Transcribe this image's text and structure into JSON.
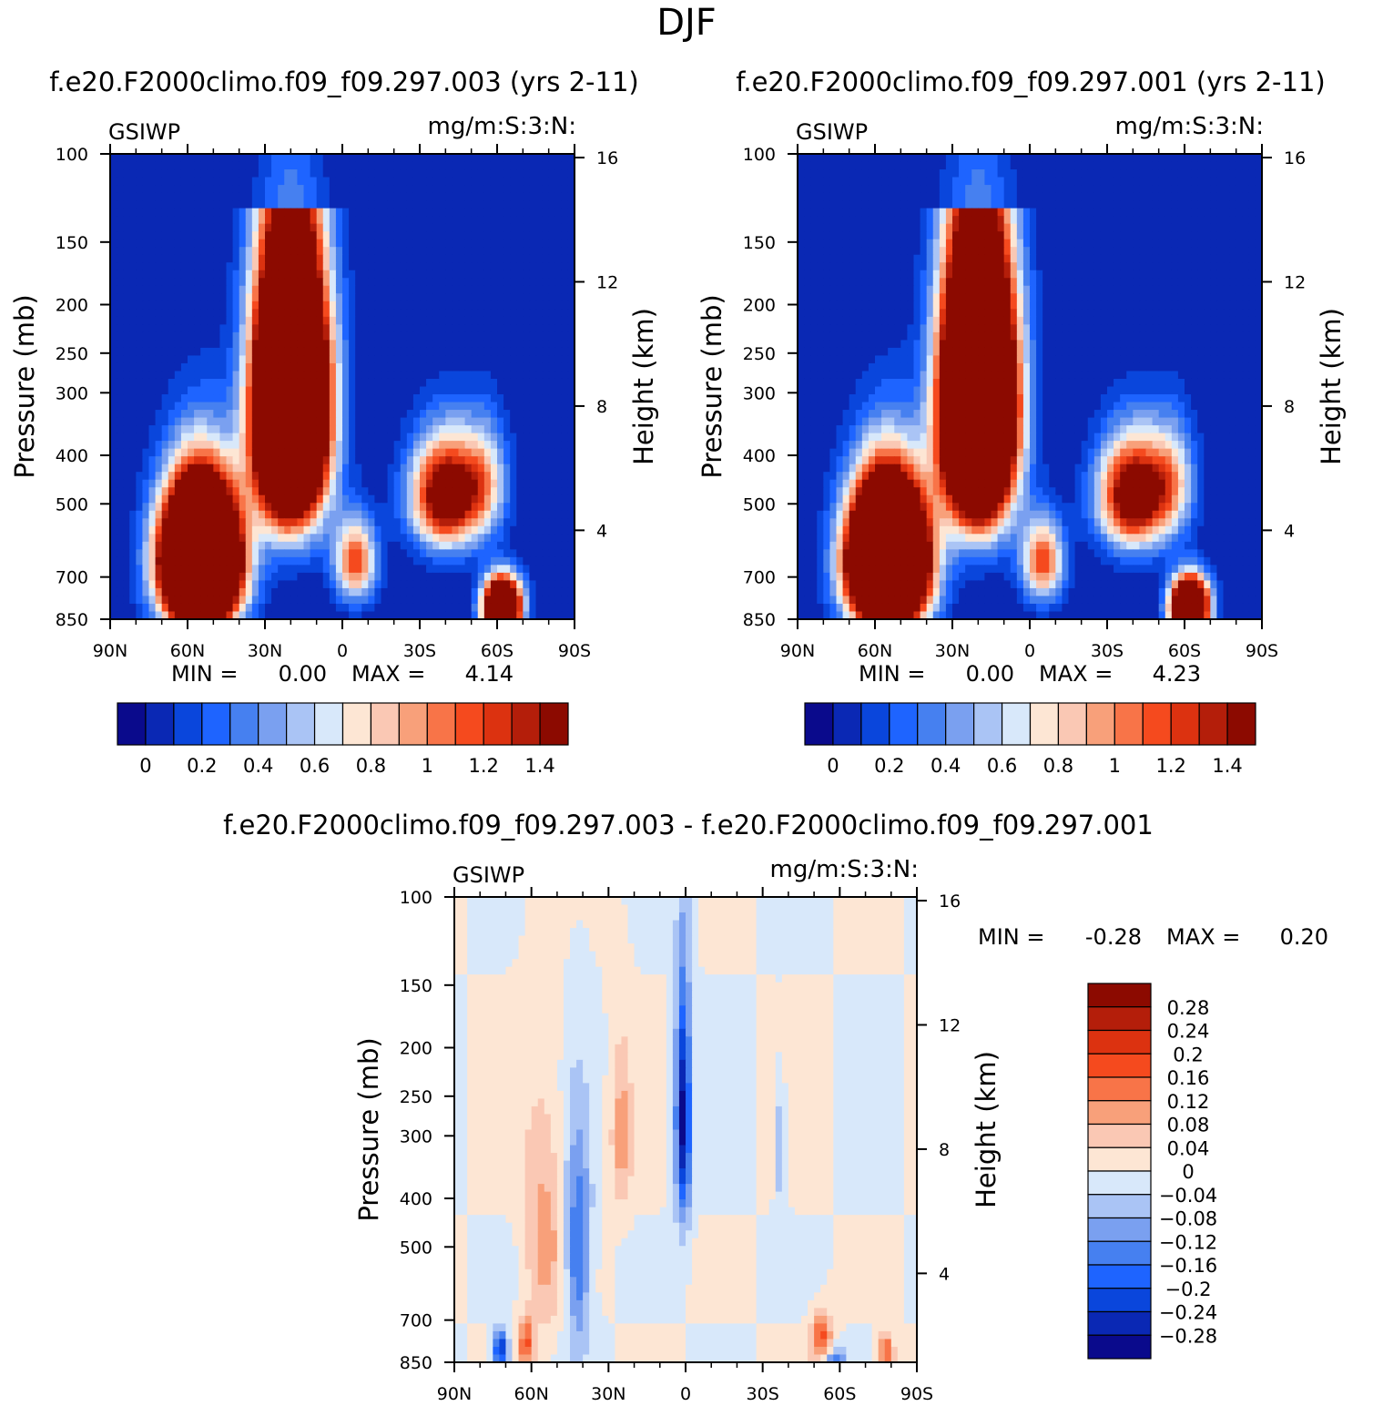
{
  "page_title": "DJF",
  "palettes": {
    "absolute": [
      "#0a0a8c",
      "#0a28b4",
      "#0a46dc",
      "#1e64ff",
      "#4680f0",
      "#7aa0f0",
      "#aac4f5",
      "#d8e8fa",
      "#fde6d4",
      "#fac8b4",
      "#f8a07a",
      "#f87448",
      "#f54a1e",
      "#dc3210",
      "#b41e0a",
      "#8c0a00"
    ],
    "difference": [
      "#0a0a8c",
      "#0a28b4",
      "#0a46dc",
      "#1e64ff",
      "#4680f0",
      "#7aa0f0",
      "#aac4f5",
      "#d8e8fa",
      "#fde6d4",
      "#fac8b4",
      "#f8a07a",
      "#f87448",
      "#f54a1e",
      "#dc3210",
      "#b41e0a",
      "#8c0a00"
    ]
  },
  "chart_data": [
    {
      "type": "heatmap",
      "title": "f.e20.F2000climo.f09_f09.297.003 (yrs 2-11)",
      "left_label": "GSIWP",
      "right_label": "mg/m:S:3:N:",
      "ylabel": "Pressure (mb)",
      "y2label": "Height (km)",
      "x_ticks": [
        "90N",
        "60N",
        "30N",
        "0",
        "30S",
        "60S",
        "90S"
      ],
      "y_ticks": [
        100,
        150,
        200,
        250,
        300,
        400,
        500,
        700,
        850
      ],
      "y2_ticks": [
        16,
        12,
        8,
        4
      ],
      "ylim": [
        100,
        850
      ],
      "min_label": "MIN =",
      "min_value": "0.00",
      "max_label": "MAX =",
      "max_value": "4.14",
      "colorbar_labels": [
        "0",
        "0.2",
        "0.4",
        "0.6",
        "0.8",
        "1",
        "1.2",
        "1.4"
      ],
      "features": [
        {
          "lat": -20,
          "p": 320,
          "amp": 5.2,
          "slat": 13,
          "sp": 190
        },
        {
          "lat": -55,
          "p": 650,
          "amp": 5.4,
          "slat": 14,
          "sp": 200
        },
        {
          "lat": 5,
          "p": 650,
          "amp": 1.2,
          "slat": 8,
          "sp": 120
        },
        {
          "lat": 40,
          "p": 480,
          "amp": 1.8,
          "slat": 13,
          "sp": 120
        },
        {
          "lat": 55,
          "p": 450,
          "amp": 0.7,
          "slat": 9,
          "sp": 120
        },
        {
          "lat": 62,
          "p": 800,
          "amp": 3.2,
          "slat": 7,
          "sp": 100
        }
      ]
    },
    {
      "type": "heatmap",
      "title": "f.e20.F2000climo.f09_f09.297.001 (yrs 2-11)",
      "left_label": "GSIWP",
      "right_label": "mg/m:S:3:N:",
      "ylabel": "Pressure (mb)",
      "y2label": "Height (km)",
      "x_ticks": [
        "90N",
        "60N",
        "30N",
        "0",
        "30S",
        "60S",
        "90S"
      ],
      "y_ticks": [
        100,
        150,
        200,
        250,
        300,
        400,
        500,
        700,
        850
      ],
      "y2_ticks": [
        16,
        12,
        8,
        4
      ],
      "ylim": [
        100,
        850
      ],
      "min_label": "MIN =",
      "min_value": "0.00",
      "max_label": "MAX =",
      "max_value": "4.23",
      "colorbar_labels": [
        "0",
        "0.2",
        "0.4",
        "0.6",
        "0.8",
        "1",
        "1.2",
        "1.4"
      ],
      "features": [
        {
          "lat": -20,
          "p": 320,
          "amp": 5.3,
          "slat": 13,
          "sp": 190
        },
        {
          "lat": -55,
          "p": 650,
          "amp": 5.5,
          "slat": 14,
          "sp": 200
        },
        {
          "lat": 5,
          "p": 650,
          "amp": 1.2,
          "slat": 8,
          "sp": 120
        },
        {
          "lat": 40,
          "p": 480,
          "amp": 1.8,
          "slat": 13,
          "sp": 120
        },
        {
          "lat": 55,
          "p": 450,
          "amp": 0.7,
          "slat": 9,
          "sp": 120
        },
        {
          "lat": 62,
          "p": 800,
          "amp": 3.3,
          "slat": 7,
          "sp": 100
        }
      ]
    },
    {
      "type": "heatmap",
      "title": "f.e20.F2000climo.f09_f09.297.003 - f.e20.F2000climo.f09_f09.297.001",
      "left_label": "GSIWP",
      "right_label": "mg/m:S:3:N:",
      "ylabel": "Pressure (mb)",
      "y2label": "Height (km)",
      "x_ticks": [
        "90N",
        "60N",
        "30N",
        "0",
        "30S",
        "60S",
        "90S"
      ],
      "y_ticks": [
        100,
        150,
        200,
        250,
        300,
        400,
        500,
        700,
        850
      ],
      "y2_ticks": [
        16,
        12,
        8,
        4
      ],
      "ylim": [
        100,
        850
      ],
      "min_label": "MIN =",
      "min_value": "-0.28",
      "max_label": "MAX =",
      "max_value": "0.20",
      "colorbar_labels": [
        "0.28",
        "0.24",
        "0.2",
        "0.16",
        "0.12",
        "0.08",
        "0.04",
        "0",
        "-0.04",
        "-0.08",
        "-0.12",
        "-0.16",
        "-0.2",
        "-0.24",
        "-0.28"
      ],
      "features": [
        {
          "lat": -1,
          "p": 280,
          "amp": -0.3,
          "slat": 3,
          "sp": 150
        },
        {
          "lat": -55,
          "p": 480,
          "amp": 0.1,
          "slat": 8,
          "sp": 240
        },
        {
          "lat": -62,
          "p": 780,
          "amp": 0.16,
          "slat": 3,
          "sp": 90
        },
        {
          "lat": -72,
          "p": 800,
          "amp": -0.26,
          "slat": 3,
          "sp": 70
        },
        {
          "lat": -42,
          "p": 520,
          "amp": -0.18,
          "slat": 5,
          "sp": 230
        },
        {
          "lat": -25,
          "p": 300,
          "amp": 0.1,
          "slat": 4,
          "sp": 110
        },
        {
          "lat": 37,
          "p": 320,
          "amp": -0.1,
          "slat": 2,
          "sp": 80
        },
        {
          "lat": 53,
          "p": 760,
          "amp": 0.17,
          "slat": 4,
          "sp": 90
        },
        {
          "lat": 58,
          "p": 850,
          "amp": -0.18,
          "slat": 4,
          "sp": 50
        },
        {
          "lat": 78,
          "p": 810,
          "amp": 0.18,
          "slat": 3,
          "sp": 70
        }
      ]
    }
  ]
}
